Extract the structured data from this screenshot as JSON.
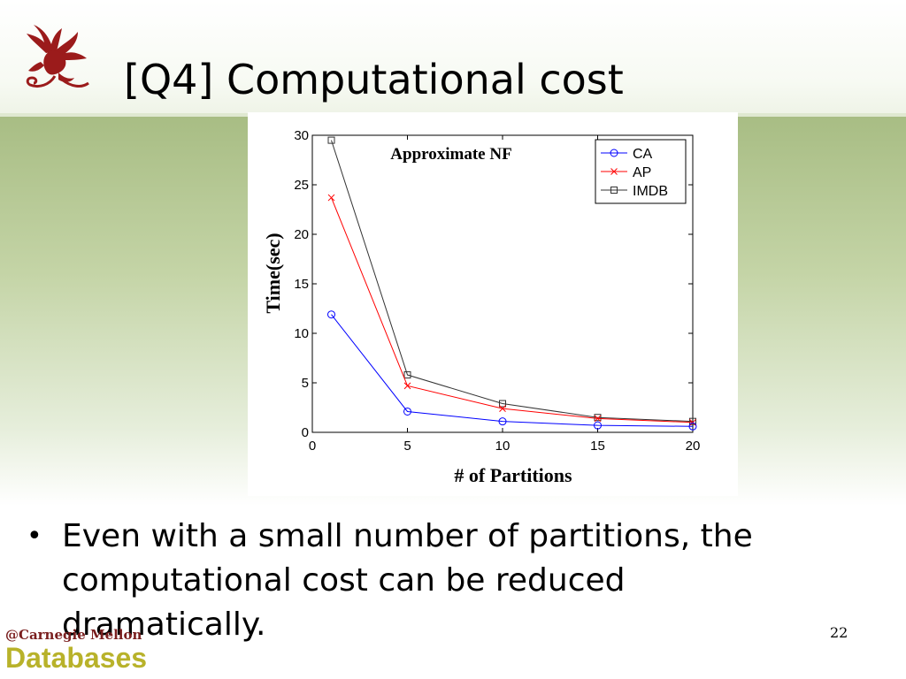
{
  "slide": {
    "title": "[Q4] Computational cost",
    "bullets": [
      "Even with a small number of partitions, the computational cost can be reduced dramatically."
    ],
    "page_number": "22",
    "footer": {
      "org": "@Carnegie Mellon",
      "group": "Databases"
    },
    "logo_icon": "dragon-icon",
    "colors": {
      "band": "#a8bd84",
      "logo": "#9b1b1b",
      "footer_group": "#b8b22a"
    }
  },
  "chart_data": {
    "type": "line",
    "title": "Approximate NF",
    "xlabel": "# of Partitions",
    "ylabel": "Time(sec)",
    "x": [
      1,
      5,
      10,
      15,
      20
    ],
    "xlim": [
      0,
      20
    ],
    "ylim": [
      0,
      30
    ],
    "xticks": [
      "0",
      "5",
      "10",
      "15",
      "20"
    ],
    "yticks": [
      "0",
      "5",
      "10",
      "15",
      "20",
      "25",
      "30"
    ],
    "grid": false,
    "legend_position": "top-right",
    "series": [
      {
        "name": "CA",
        "color": "#0000ff",
        "marker": "circle",
        "values": [
          11.9,
          2.1,
          1.1,
          0.7,
          0.6
        ]
      },
      {
        "name": "AP",
        "color": "#ff0000",
        "marker": "x",
        "values": [
          23.7,
          4.7,
          2.4,
          1.4,
          1.0
        ]
      },
      {
        "name": "IMDB",
        "color": "#333333",
        "marker": "square",
        "values": [
          29.5,
          5.8,
          2.9,
          1.5,
          1.1
        ]
      }
    ]
  }
}
